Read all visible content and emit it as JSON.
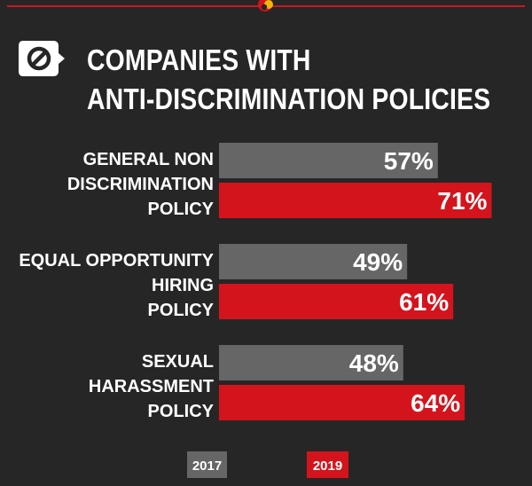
{
  "colors": {
    "background": "#262626",
    "accent": "#d4141c",
    "series_2017": "#666666",
    "series_2019": "#d4141c"
  },
  "header": {
    "icon": "prohibition-speech-bubble-icon",
    "emblem": "logo-emblem"
  },
  "chart_data": {
    "type": "bar",
    "orientation": "horizontal",
    "title": "COMPANIES WITH ANTI-DISCRIMINATION POLICIES",
    "title_lines": [
      "COMPANIES WITH",
      "ANTI-DISCRIMINATION POLICIES"
    ],
    "categories": [
      "GENERAL NON DISCRIMINATION POLICY",
      "EQUAL OPPORTUNITY HIRING POLICY",
      "SEXUAL HARASSMENT POLICY"
    ],
    "category_lines": [
      [
        "GENERAL NON",
        "DISCRIMINATION",
        "POLICY"
      ],
      [
        "EQUAL OPPORTUNITY",
        "HIRING",
        "POLICY"
      ],
      [
        "SEXUAL",
        "HARASSMENT",
        "POLICY"
      ]
    ],
    "series": [
      {
        "name": "2017",
        "color": "#666666",
        "values": [
          57,
          49,
          48
        ],
        "labels": [
          "57%",
          "49%",
          "48%"
        ]
      },
      {
        "name": "2019",
        "color": "#d4141c",
        "values": [
          71,
          61,
          64
        ],
        "labels": [
          "71%",
          "61%",
          "64%"
        ]
      }
    ],
    "unit": "%",
    "xlim": [
      0,
      100
    ],
    "grid": false,
    "legend_position": "bottom"
  }
}
